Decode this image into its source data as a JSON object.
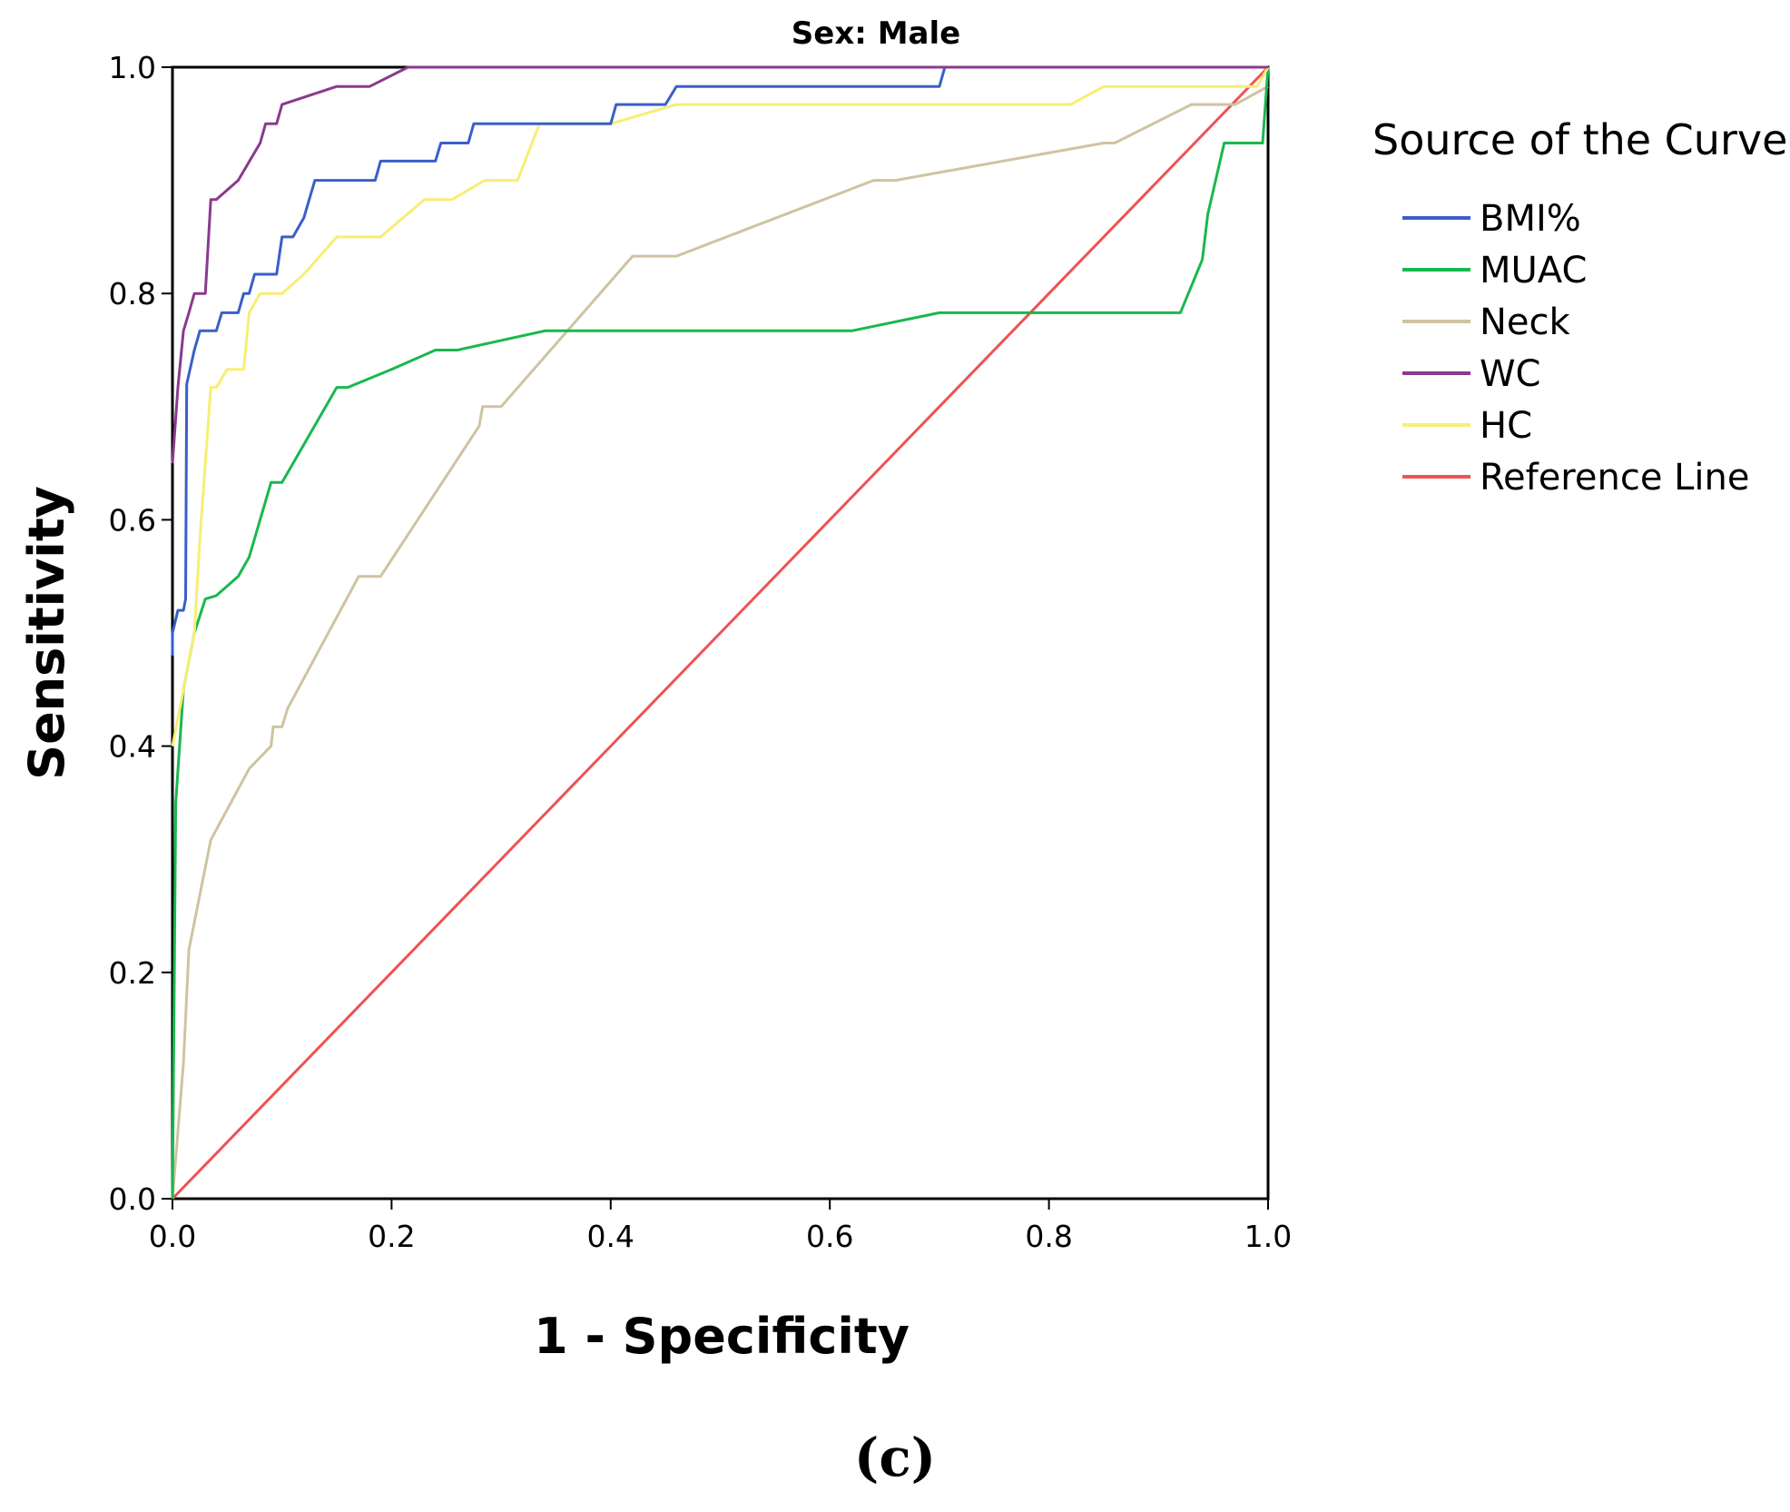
{
  "chart_data": {
    "type": "line",
    "title": "Sex: Male",
    "xlabel": "1 - Specificity",
    "ylabel": "Sensitivity",
    "xlim": [
      0,
      1
    ],
    "ylim": [
      0,
      1
    ],
    "xticks": [
      "0.0",
      "0.2",
      "0.4",
      "0.6",
      "0.8",
      "1.0"
    ],
    "yticks": [
      "0.0",
      "0.2",
      "0.4",
      "0.6",
      "0.8",
      "1.0"
    ],
    "grid": false,
    "legend": {
      "title": "Source of the Curve",
      "placement": "right"
    },
    "series": [
      {
        "name": "BMI%",
        "color": "#3a5fc8",
        "points": [
          [
            0,
            0.48
          ],
          [
            0,
            0.5
          ],
          [
            0.005,
            0.52
          ],
          [
            0.01,
            0.52
          ],
          [
            0.012,
            0.53
          ],
          [
            0.013,
            0.72
          ],
          [
            0.02,
            0.75
          ],
          [
            0.025,
            0.767
          ],
          [
            0.04,
            0.767
          ],
          [
            0.045,
            0.783
          ],
          [
            0.06,
            0.783
          ],
          [
            0.065,
            0.8
          ],
          [
            0.07,
            0.8
          ],
          [
            0.075,
            0.817
          ],
          [
            0.095,
            0.817
          ],
          [
            0.1,
            0.85
          ],
          [
            0.11,
            0.85
          ],
          [
            0.12,
            0.867
          ],
          [
            0.13,
            0.9
          ],
          [
            0.185,
            0.9
          ],
          [
            0.19,
            0.917
          ],
          [
            0.24,
            0.917
          ],
          [
            0.245,
            0.933
          ],
          [
            0.27,
            0.933
          ],
          [
            0.275,
            0.95
          ],
          [
            0.4,
            0.95
          ],
          [
            0.405,
            0.967
          ],
          [
            0.45,
            0.967
          ],
          [
            0.46,
            0.983
          ],
          [
            0.7,
            0.983
          ],
          [
            0.705,
            1.0
          ],
          [
            1.0,
            1.0
          ]
        ]
      },
      {
        "name": "MUAC",
        "color": "#19b84e",
        "points": [
          [
            0,
            0
          ],
          [
            0.003,
            0.35
          ],
          [
            0.01,
            0.45
          ],
          [
            0.02,
            0.5
          ],
          [
            0.03,
            0.53
          ],
          [
            0.04,
            0.533
          ],
          [
            0.06,
            0.55
          ],
          [
            0.07,
            0.567
          ],
          [
            0.09,
            0.633
          ],
          [
            0.1,
            0.633
          ],
          [
            0.15,
            0.717
          ],
          [
            0.16,
            0.717
          ],
          [
            0.2,
            0.733
          ],
          [
            0.24,
            0.75
          ],
          [
            0.26,
            0.75
          ],
          [
            0.34,
            0.767
          ],
          [
            0.62,
            0.767
          ],
          [
            0.7,
            0.783
          ],
          [
            0.92,
            0.783
          ],
          [
            0.94,
            0.83
          ],
          [
            0.945,
            0.87
          ],
          [
            0.96,
            0.933
          ],
          [
            0.995,
            0.933
          ],
          [
            1.0,
            1.0
          ]
        ]
      },
      {
        "name": "Neck",
        "color": "#cfc3a2",
        "points": [
          [
            0,
            0
          ],
          [
            0.01,
            0.12
          ],
          [
            0.015,
            0.22
          ],
          [
            0.035,
            0.317
          ],
          [
            0.07,
            0.38
          ],
          [
            0.09,
            0.4
          ],
          [
            0.092,
            0.417
          ],
          [
            0.1,
            0.417
          ],
          [
            0.105,
            0.433
          ],
          [
            0.17,
            0.55
          ],
          [
            0.19,
            0.55
          ],
          [
            0.28,
            0.683
          ],
          [
            0.283,
            0.7
          ],
          [
            0.3,
            0.7
          ],
          [
            0.42,
            0.833
          ],
          [
            0.46,
            0.833
          ],
          [
            0.64,
            0.9
          ],
          [
            0.66,
            0.9
          ],
          [
            0.85,
            0.933
          ],
          [
            0.86,
            0.933
          ],
          [
            0.93,
            0.967
          ],
          [
            0.97,
            0.967
          ],
          [
            1.0,
            0.983
          ]
        ]
      },
      {
        "name": "WC",
        "color": "#8a3a8e",
        "points": [
          [
            0,
            0.65
          ],
          [
            0.005,
            0.717
          ],
          [
            0.01,
            0.767
          ],
          [
            0.015,
            0.783
          ],
          [
            0.02,
            0.8
          ],
          [
            0.03,
            0.8
          ],
          [
            0.035,
            0.883
          ],
          [
            0.04,
            0.883
          ],
          [
            0.06,
            0.9
          ],
          [
            0.08,
            0.933
          ],
          [
            0.085,
            0.95
          ],
          [
            0.095,
            0.95
          ],
          [
            0.1,
            0.967
          ],
          [
            0.15,
            0.983
          ],
          [
            0.18,
            0.983
          ],
          [
            0.215,
            1.0
          ],
          [
            1.0,
            1.0
          ]
        ]
      },
      {
        "name": "HC",
        "color": "#f7ee75",
        "points": [
          [
            0,
            0.4
          ],
          [
            0.01,
            0.45
          ],
          [
            0.02,
            0.5
          ],
          [
            0.025,
            0.583
          ],
          [
            0.03,
            0.65
          ],
          [
            0.035,
            0.717
          ],
          [
            0.04,
            0.717
          ],
          [
            0.05,
            0.733
          ],
          [
            0.065,
            0.733
          ],
          [
            0.07,
            0.783
          ],
          [
            0.08,
            0.8
          ],
          [
            0.1,
            0.8
          ],
          [
            0.12,
            0.817
          ],
          [
            0.15,
            0.85
          ],
          [
            0.19,
            0.85
          ],
          [
            0.23,
            0.883
          ],
          [
            0.255,
            0.883
          ],
          [
            0.285,
            0.9
          ],
          [
            0.315,
            0.9
          ],
          [
            0.335,
            0.95
          ],
          [
            0.4,
            0.95
          ],
          [
            0.46,
            0.967
          ],
          [
            0.82,
            0.967
          ],
          [
            0.85,
            0.983
          ],
          [
            0.99,
            0.983
          ],
          [
            1.0,
            1.0
          ]
        ]
      },
      {
        "name": "Reference Line",
        "color": "#f05252",
        "points": [
          [
            0,
            0
          ],
          [
            1,
            1
          ]
        ]
      }
    ]
  },
  "caption": "(c)"
}
